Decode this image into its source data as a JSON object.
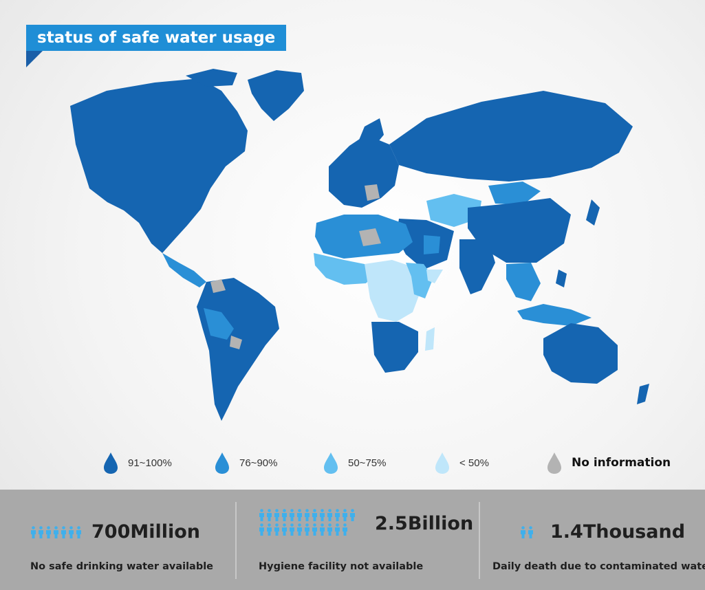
{
  "title": "status of safe water usage",
  "colors": {
    "cat_91_100": "#1565b1",
    "cat_76_90": "#2a8fd6",
    "cat_50_75": "#63bff0",
    "cat_lt50": "#bfe6fa",
    "no_info": "#b3b3b3",
    "banner": "#1f8ed6",
    "stats_bg": "#a9a9a9",
    "people_icon": "#3fb0ec"
  },
  "legend": [
    {
      "label": "91~100%",
      "color": "#1565b1",
      "icon": "water-drop-icon"
    },
    {
      "label": "76~90%",
      "color": "#2a8fd6",
      "icon": "water-drop-icon"
    },
    {
      "label": "50~75%",
      "color": "#63bff0",
      "icon": "water-drop-icon"
    },
    {
      "label": "< 50%",
      "color": "#bfe6fa",
      "icon": "water-drop-icon"
    },
    {
      "label": "No information",
      "color": "#b3b3b3",
      "icon": "water-drop-icon"
    }
  ],
  "stats": [
    {
      "value": "700Million",
      "description": "No safe drinking water available",
      "icon": "people-icon",
      "people_count": 7
    },
    {
      "value": "2.5Billion",
      "description": "Hygiene facility not available",
      "icon": "people-icon",
      "people_count": 25
    },
    {
      "value": "1.4Thousand",
      "description": "Daily death due to contaminated water",
      "icon": "people-icon",
      "people_count": 2
    }
  ]
}
